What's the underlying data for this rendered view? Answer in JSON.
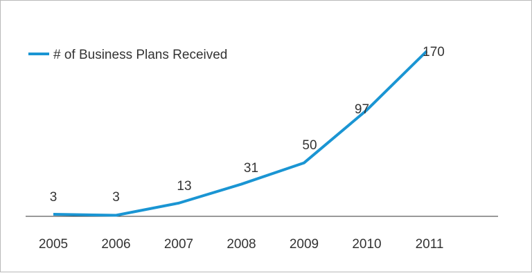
{
  "colors": {
    "series": "#1a95d3",
    "axis": "#333333",
    "text": "#333333",
    "border": "#b9b9b9"
  },
  "chart_data": {
    "type": "line",
    "title": "",
    "xlabel": "",
    "ylabel": "",
    "categories": [
      "2005",
      "2006",
      "2007",
      "2008",
      "2009",
      "2010",
      "2011"
    ],
    "series": [
      {
        "name": "# of Business Plans Received",
        "values": [
          3,
          3,
          13,
          31,
          50,
          97,
          170
        ]
      }
    ],
    "ylim": [
      0,
      180
    ],
    "grid": false,
    "legend": "top-left",
    "data_labels": true
  }
}
